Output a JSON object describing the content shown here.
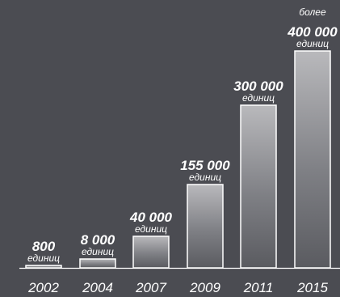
{
  "chart_data": {
    "type": "bar",
    "categories": [
      "2002",
      "2004",
      "2007",
      "2009",
      "2011",
      "2015"
    ],
    "values": [
      800,
      8000,
      40000,
      155000,
      300000,
      400000
    ],
    "value_labels": [
      "800",
      "8 000",
      "40 000",
      "155 000",
      "300 000",
      "400 000"
    ],
    "value_prefixes": [
      "",
      "",
      "",
      "",
      "",
      "более"
    ],
    "unit_label": "единиц",
    "title": "",
    "xlabel": "",
    "ylabel": "",
    "scale": "non-linear (bar heights are illustrative, not proportional)",
    "colors": {
      "background": "#4b4c52",
      "bar_top": "#b9b9bc",
      "bar_bottom": "#5a5b60",
      "bar_outline": "#ffffff",
      "text": "#ffffff"
    }
  }
}
